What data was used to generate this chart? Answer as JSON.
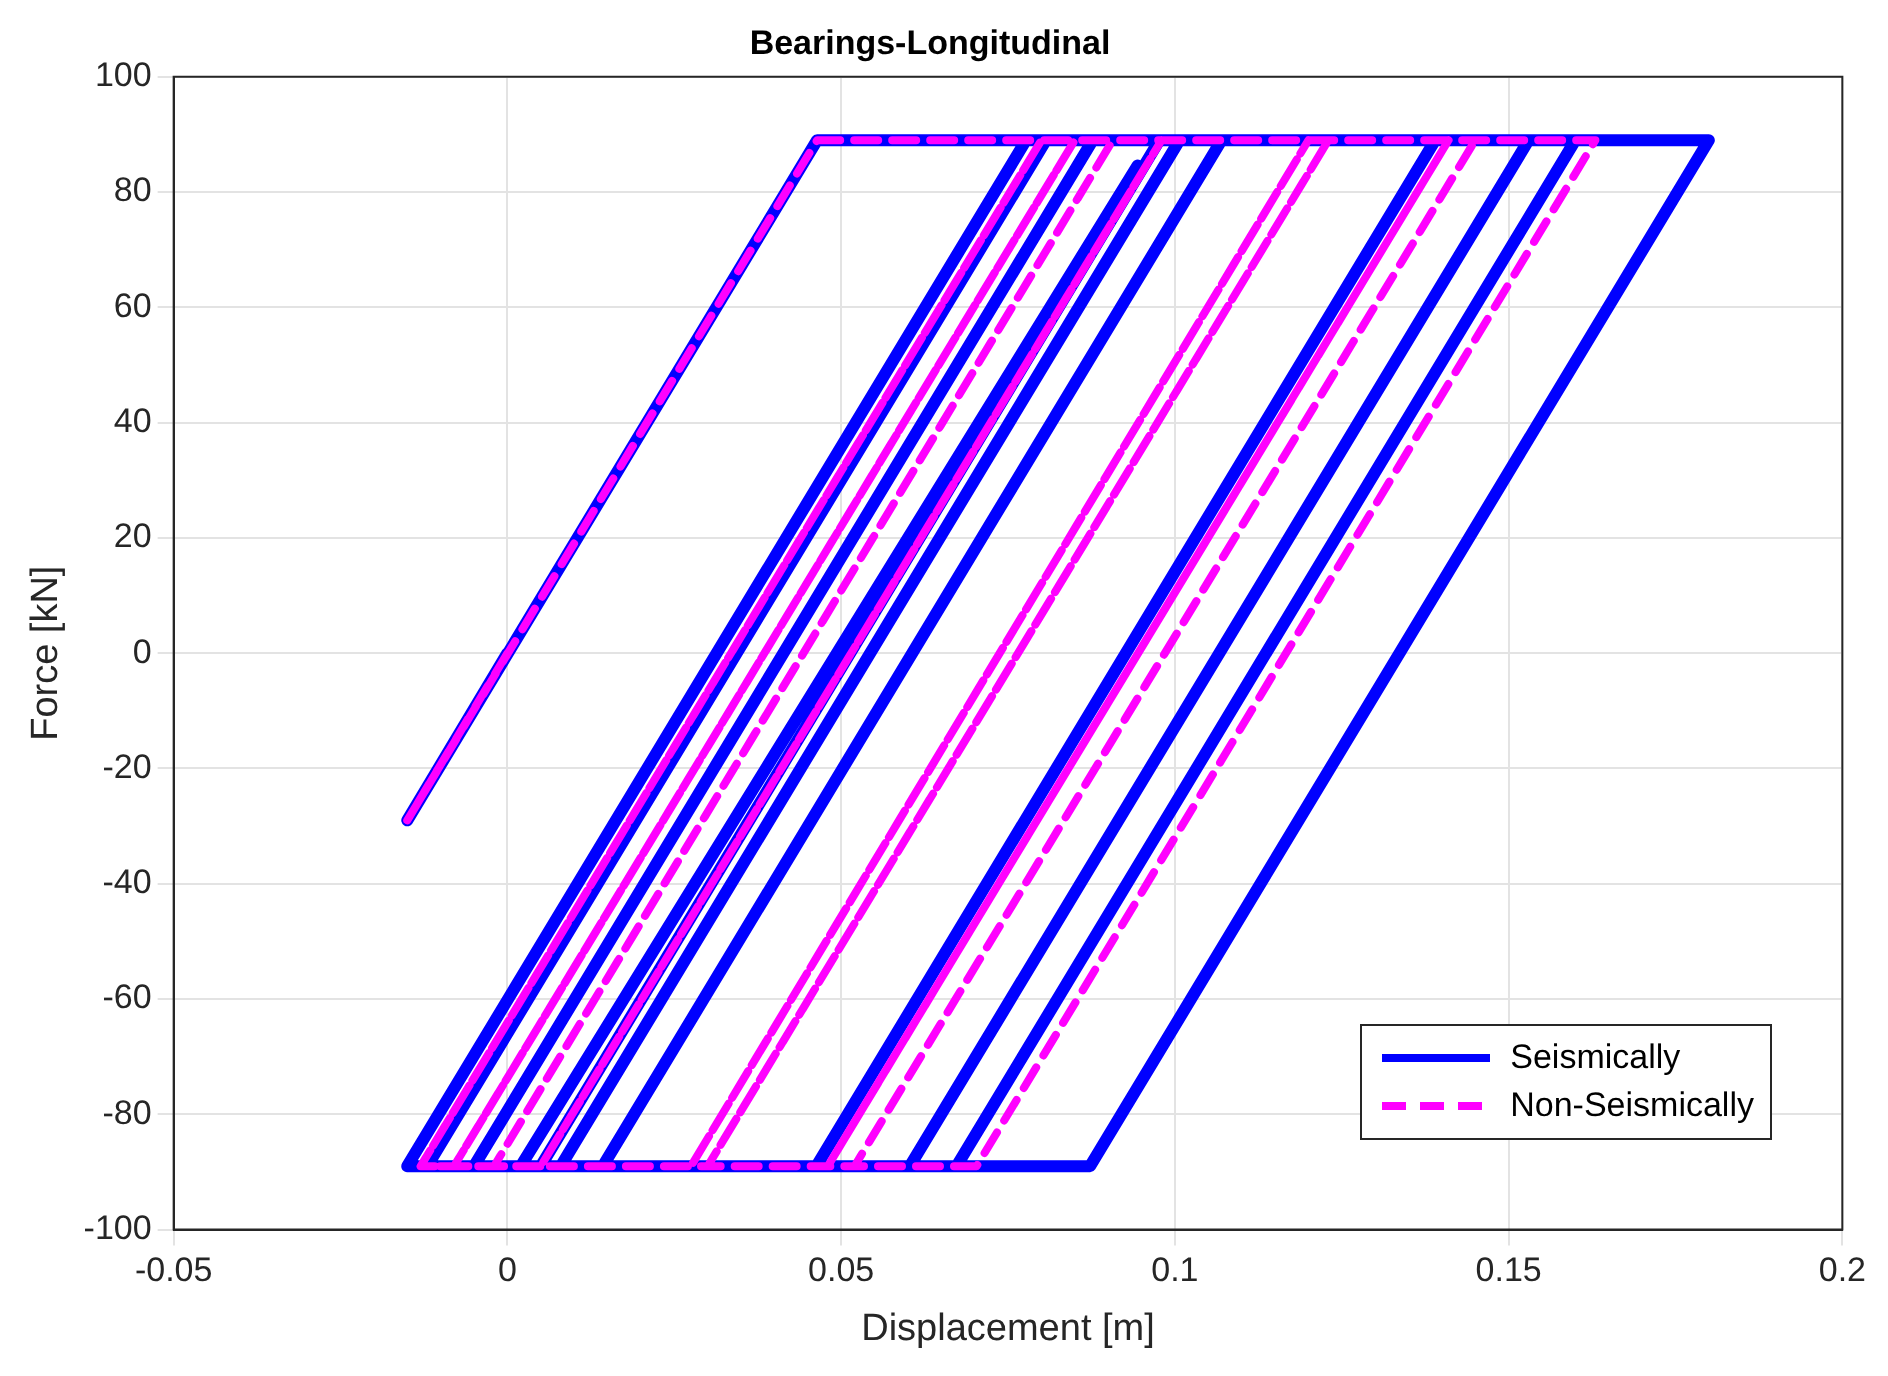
{
  "chart_data": {
    "type": "line",
    "title": "Bearings-Longitudinal",
    "xlabel": "Displacement [m]",
    "ylabel": "Force [kN]",
    "xlim": [
      -0.05,
      0.2
    ],
    "xticks": [
      -0.05,
      0,
      0.05,
      0.1,
      0.15,
      0.2
    ],
    "ylim": [
      -100,
      100
    ],
    "yticks": [
      -100,
      -80,
      -60,
      -40,
      -20,
      0,
      20,
      40,
      60,
      80,
      100
    ],
    "grid": true,
    "legend": "bottom right",
    "marker": "none",
    "series": [
      {
        "name": "Seismically",
        "color": "#0000ff",
        "line_style": "solid",
        "x": [
          0,
          -0.015,
          0.0464,
          0.18,
          0.0873,
          0.0673,
          0.16,
          0.0673,
          0.0603,
          0.153,
          0.0603,
          0.0463,
          0.139,
          0.0463,
          0.0143,
          0.107,
          0.0143,
          0.008,
          0.1007,
          0.008,
          -0.015,
          0.0777,
          -0.015,
          0.005,
          0.0977,
          0.005,
          -0.012,
          0.0807,
          -0.012,
          -0.005,
          0.0877,
          -0.005,
          0.002,
          0.0944
        ],
        "values": [
          0,
          -29,
          89,
          89,
          -89,
          -89,
          89,
          -89,
          -89,
          89,
          -89,
          -89,
          89,
          -89,
          -89,
          89,
          -89,
          -89,
          89,
          -89,
          -89,
          89,
          -89,
          -89,
          89,
          -89,
          -89,
          89,
          -89,
          -89,
          89,
          -89,
          -89,
          84.6
        ]
      },
      {
        "name": "Non-Seismically",
        "color": "#ff00ff",
        "line_style": "dashed",
        "x": [
          0,
          -0.015,
          0.0464,
          0.163,
          0.0703,
          0.052,
          0.145,
          0.052,
          0.048,
          0.141,
          0.048,
          0.03,
          0.123,
          0.03,
          0.0275,
          0.12,
          0.0275,
          0.005,
          0.098,
          0.005,
          -0.013,
          0.08,
          -0.013,
          -0.008,
          0.085,
          -0.008,
          -0.002,
          0.0907,
          -0.002,
          0.003
        ],
        "values": [
          0,
          -29,
          89,
          89,
          -89,
          -89,
          89,
          -89,
          -89,
          89,
          -89,
          -89,
          89,
          -89,
          -89,
          89,
          -89,
          -89,
          89,
          -89,
          -89,
          89,
          -89,
          -89,
          89,
          -89,
          -89,
          89,
          -89,
          -89
        ]
      }
    ]
  }
}
